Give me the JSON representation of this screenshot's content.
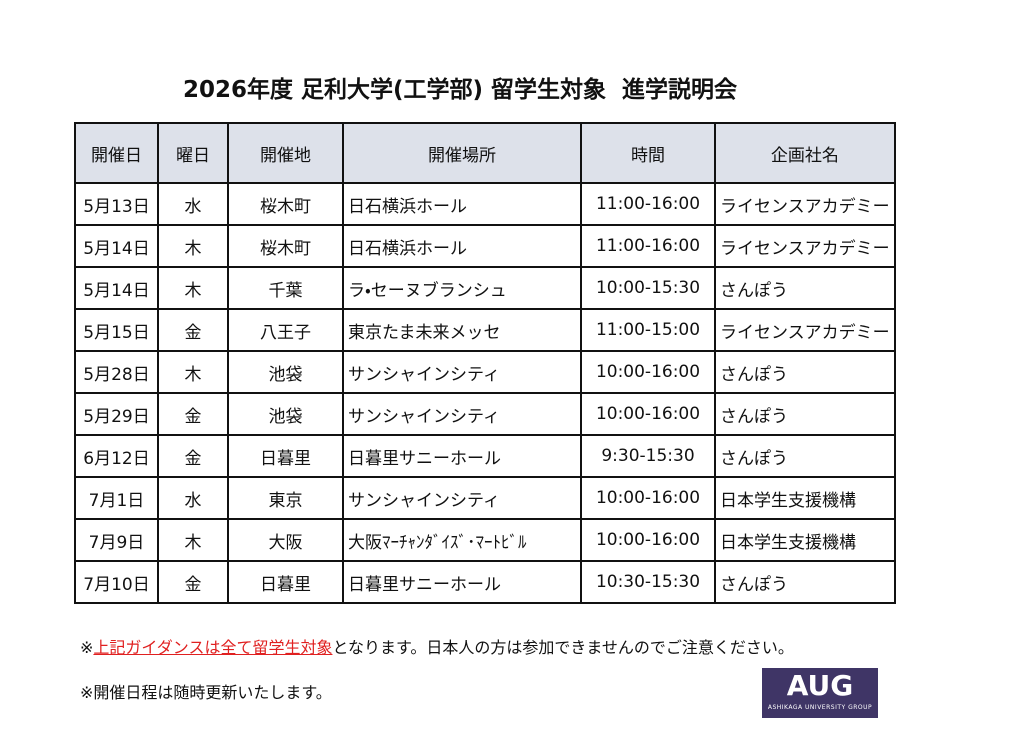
{
  "header": {
    "title": "2026年度 足利大学(工学部) 留学生対象  進学説明会"
  },
  "table": {
    "headers": [
      "開催日",
      "曜日",
      "開催地",
      "開催場所",
      "時間",
      "企画社名"
    ],
    "rows": [
      [
        "5月13日",
        "水",
        "桜木町",
        "日石横浜ホール",
        "11:00-16:00",
        "ライセンスアカデミー"
      ],
      [
        "5月14日",
        "木",
        "桜木町",
        "日石横浜ホール",
        "11:00-16:00",
        "ライセンスアカデミー"
      ],
      [
        "5月14日",
        "木",
        "千葉",
        "ラ・セーヌブランシュ",
        "10:00-15:30",
        "さんぽう"
      ],
      [
        "5月15日",
        "金",
        "八王子",
        "東京たま未来メッセ",
        "11:00-15:00",
        "ライセンスアカデミー"
      ],
      [
        "5月28日",
        "木",
        "池袋",
        "サンシャインシティ",
        "10:00-16:00",
        "さんぽう"
      ],
      [
        "5月29日",
        "金",
        "池袋",
        "サンシャインシティ",
        "10:00-16:00",
        "さんぽう"
      ],
      [
        "6月12日",
        "金",
        "日暮里",
        "日暮里サニーホール",
        "9:30-15:30",
        "さんぽう"
      ],
      [
        "7月1日",
        "水",
        "東京",
        "サンシャインシティ",
        "10:00-16:00",
        "日本学生支援機構"
      ],
      [
        "7月9日",
        "木",
        "大阪",
        "大阪ﾏｰﾁｬﾝﾀﾞｲｽﾞ･ﾏｰﾄﾋﾞﾙ",
        "10:00-16:00",
        "日本学生支援機構"
      ],
      [
        "7月10日",
        "金",
        "日暮里",
        "日暮里サニーホール",
        "10:30-15:30",
        "さんぽう"
      ]
    ]
  },
  "notes": [
    {
      "prefix": "※",
      "highlight": "上記ガイダンスは全て留学生対象",
      "suffix": "となります。日本人の方は参加できませんのでご注意ください。"
    },
    {
      "prefix": "※",
      "highlight": null,
      "suffix": "開催日程は随時更新いたします。"
    }
  ],
  "logo": {
    "mark": "AUG",
    "caption": "ASHIKAGA UNIVERSITY GROUP"
  }
}
